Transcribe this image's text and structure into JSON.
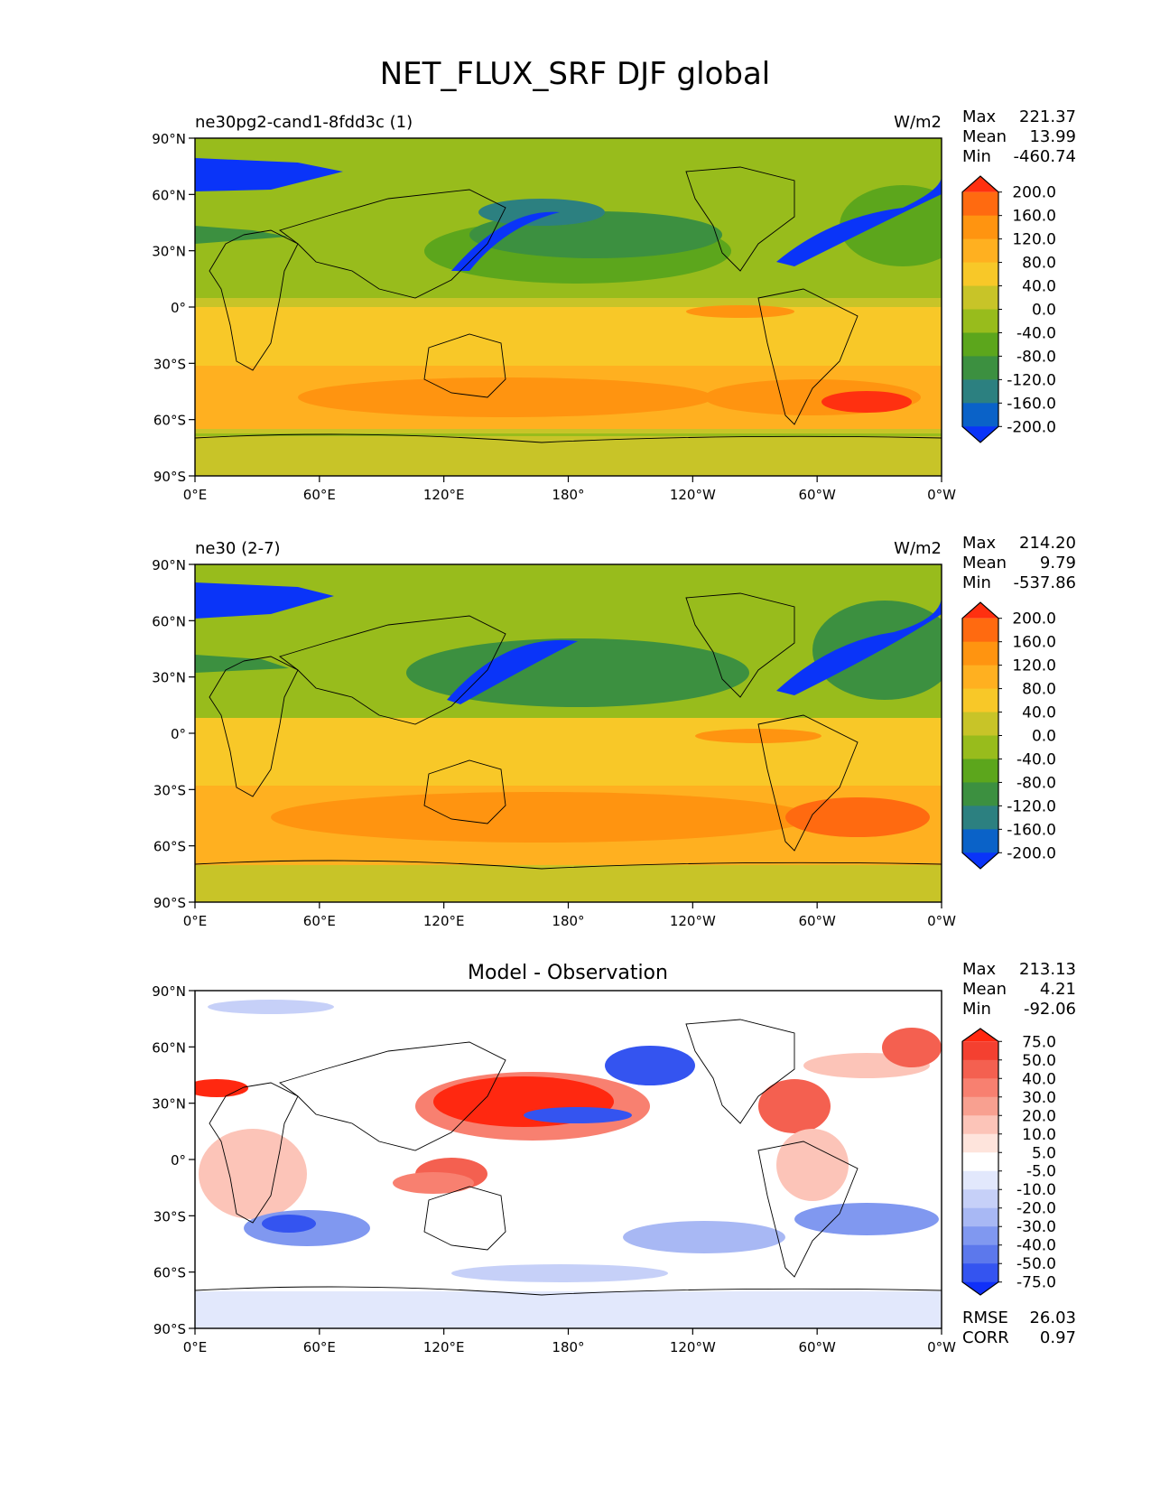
{
  "figure": {
    "title": "NET_FLUX_SRF DJF global"
  },
  "axes_ticks": {
    "lat": [
      "90°N",
      "60°N",
      "30°N",
      "0°",
      "30°S",
      "60°S",
      "90°S"
    ],
    "lon": [
      "0°E",
      "60°E",
      "120°E",
      "180°",
      "120°W",
      "60°W",
      "0°W"
    ]
  },
  "chart_data": [
    {
      "type": "heatmap",
      "title_left": "ne30pg2-cand1-8fdd3c (1)",
      "title_center": "",
      "units": "W/m2",
      "stats": {
        "max_label": "Max",
        "max": "221.37",
        "mean_label": "Mean",
        "mean": "13.99",
        "min_label": "Min",
        "min": "-460.74"
      },
      "colorbar": {
        "levels": [
          "200.0",
          "160.0",
          "120.0",
          "80.0",
          "40.0",
          "0.0",
          "-40.0",
          "-80.0",
          "-120.0",
          "-160.0",
          "-200.0"
        ],
        "colors": [
          "#ff3010",
          "#ff6a10",
          "#ff9410",
          "#ffb020",
          "#f8c828",
          "#c8c428",
          "#98bc1c",
          "#5ca61c",
          "#3c9040",
          "#2c8080",
          "#0a62c8",
          "#0a34f8"
        ]
      },
      "xlim": [
        0,
        360
      ],
      "ylim": [
        -90,
        90
      ]
    },
    {
      "type": "heatmap",
      "title_left": "ne30 (2-7)",
      "title_center": "",
      "units": "W/m2",
      "stats": {
        "max_label": "Max",
        "max": "214.20",
        "mean_label": "Mean",
        "mean": "9.79",
        "min_label": "Min",
        "min": "-537.86"
      },
      "colorbar": {
        "levels": [
          "200.0",
          "160.0",
          "120.0",
          "80.0",
          "40.0",
          "0.0",
          "-40.0",
          "-80.0",
          "-120.0",
          "-160.0",
          "-200.0"
        ],
        "colors": [
          "#ff3010",
          "#ff6a10",
          "#ff9410",
          "#ffb020",
          "#f8c828",
          "#c8c428",
          "#98bc1c",
          "#5ca61c",
          "#3c9040",
          "#2c8080",
          "#0a62c8",
          "#0a34f8"
        ]
      },
      "xlim": [
        0,
        360
      ],
      "ylim": [
        -90,
        90
      ]
    },
    {
      "type": "heatmap",
      "title_left": "",
      "title_center": "Model - Observation",
      "units": "",
      "stats": {
        "max_label": "Max",
        "max": "213.13",
        "mean_label": "Mean",
        "mean": "4.21",
        "min_label": "Min",
        "min": "-92.06"
      },
      "rmse_label": "RMSE",
      "rmse": "26.03",
      "corr_label": "CORR",
      "corr": "0.97",
      "colorbar": {
        "levels": [
          "75.0",
          "50.0",
          "40.0",
          "30.0",
          "20.0",
          "10.0",
          "5.0",
          "-5.0",
          "-10.0",
          "-20.0",
          "-30.0",
          "-40.0",
          "-50.0",
          "-75.0"
        ],
        "colors": [
          "#ff2810",
          "#f44030",
          "#f46050",
          "#f88070",
          "#f8a090",
          "#fcc4b8",
          "#fee4dc",
          "#ffffff",
          "#e2e8fc",
          "#c6d0f8",
          "#a8b8f4",
          "#8098f0",
          "#5c78ec",
          "#3454f0",
          "#1030f8"
        ]
      },
      "xlim": [
        0,
        360
      ],
      "ylim": [
        -90,
        90
      ]
    }
  ]
}
